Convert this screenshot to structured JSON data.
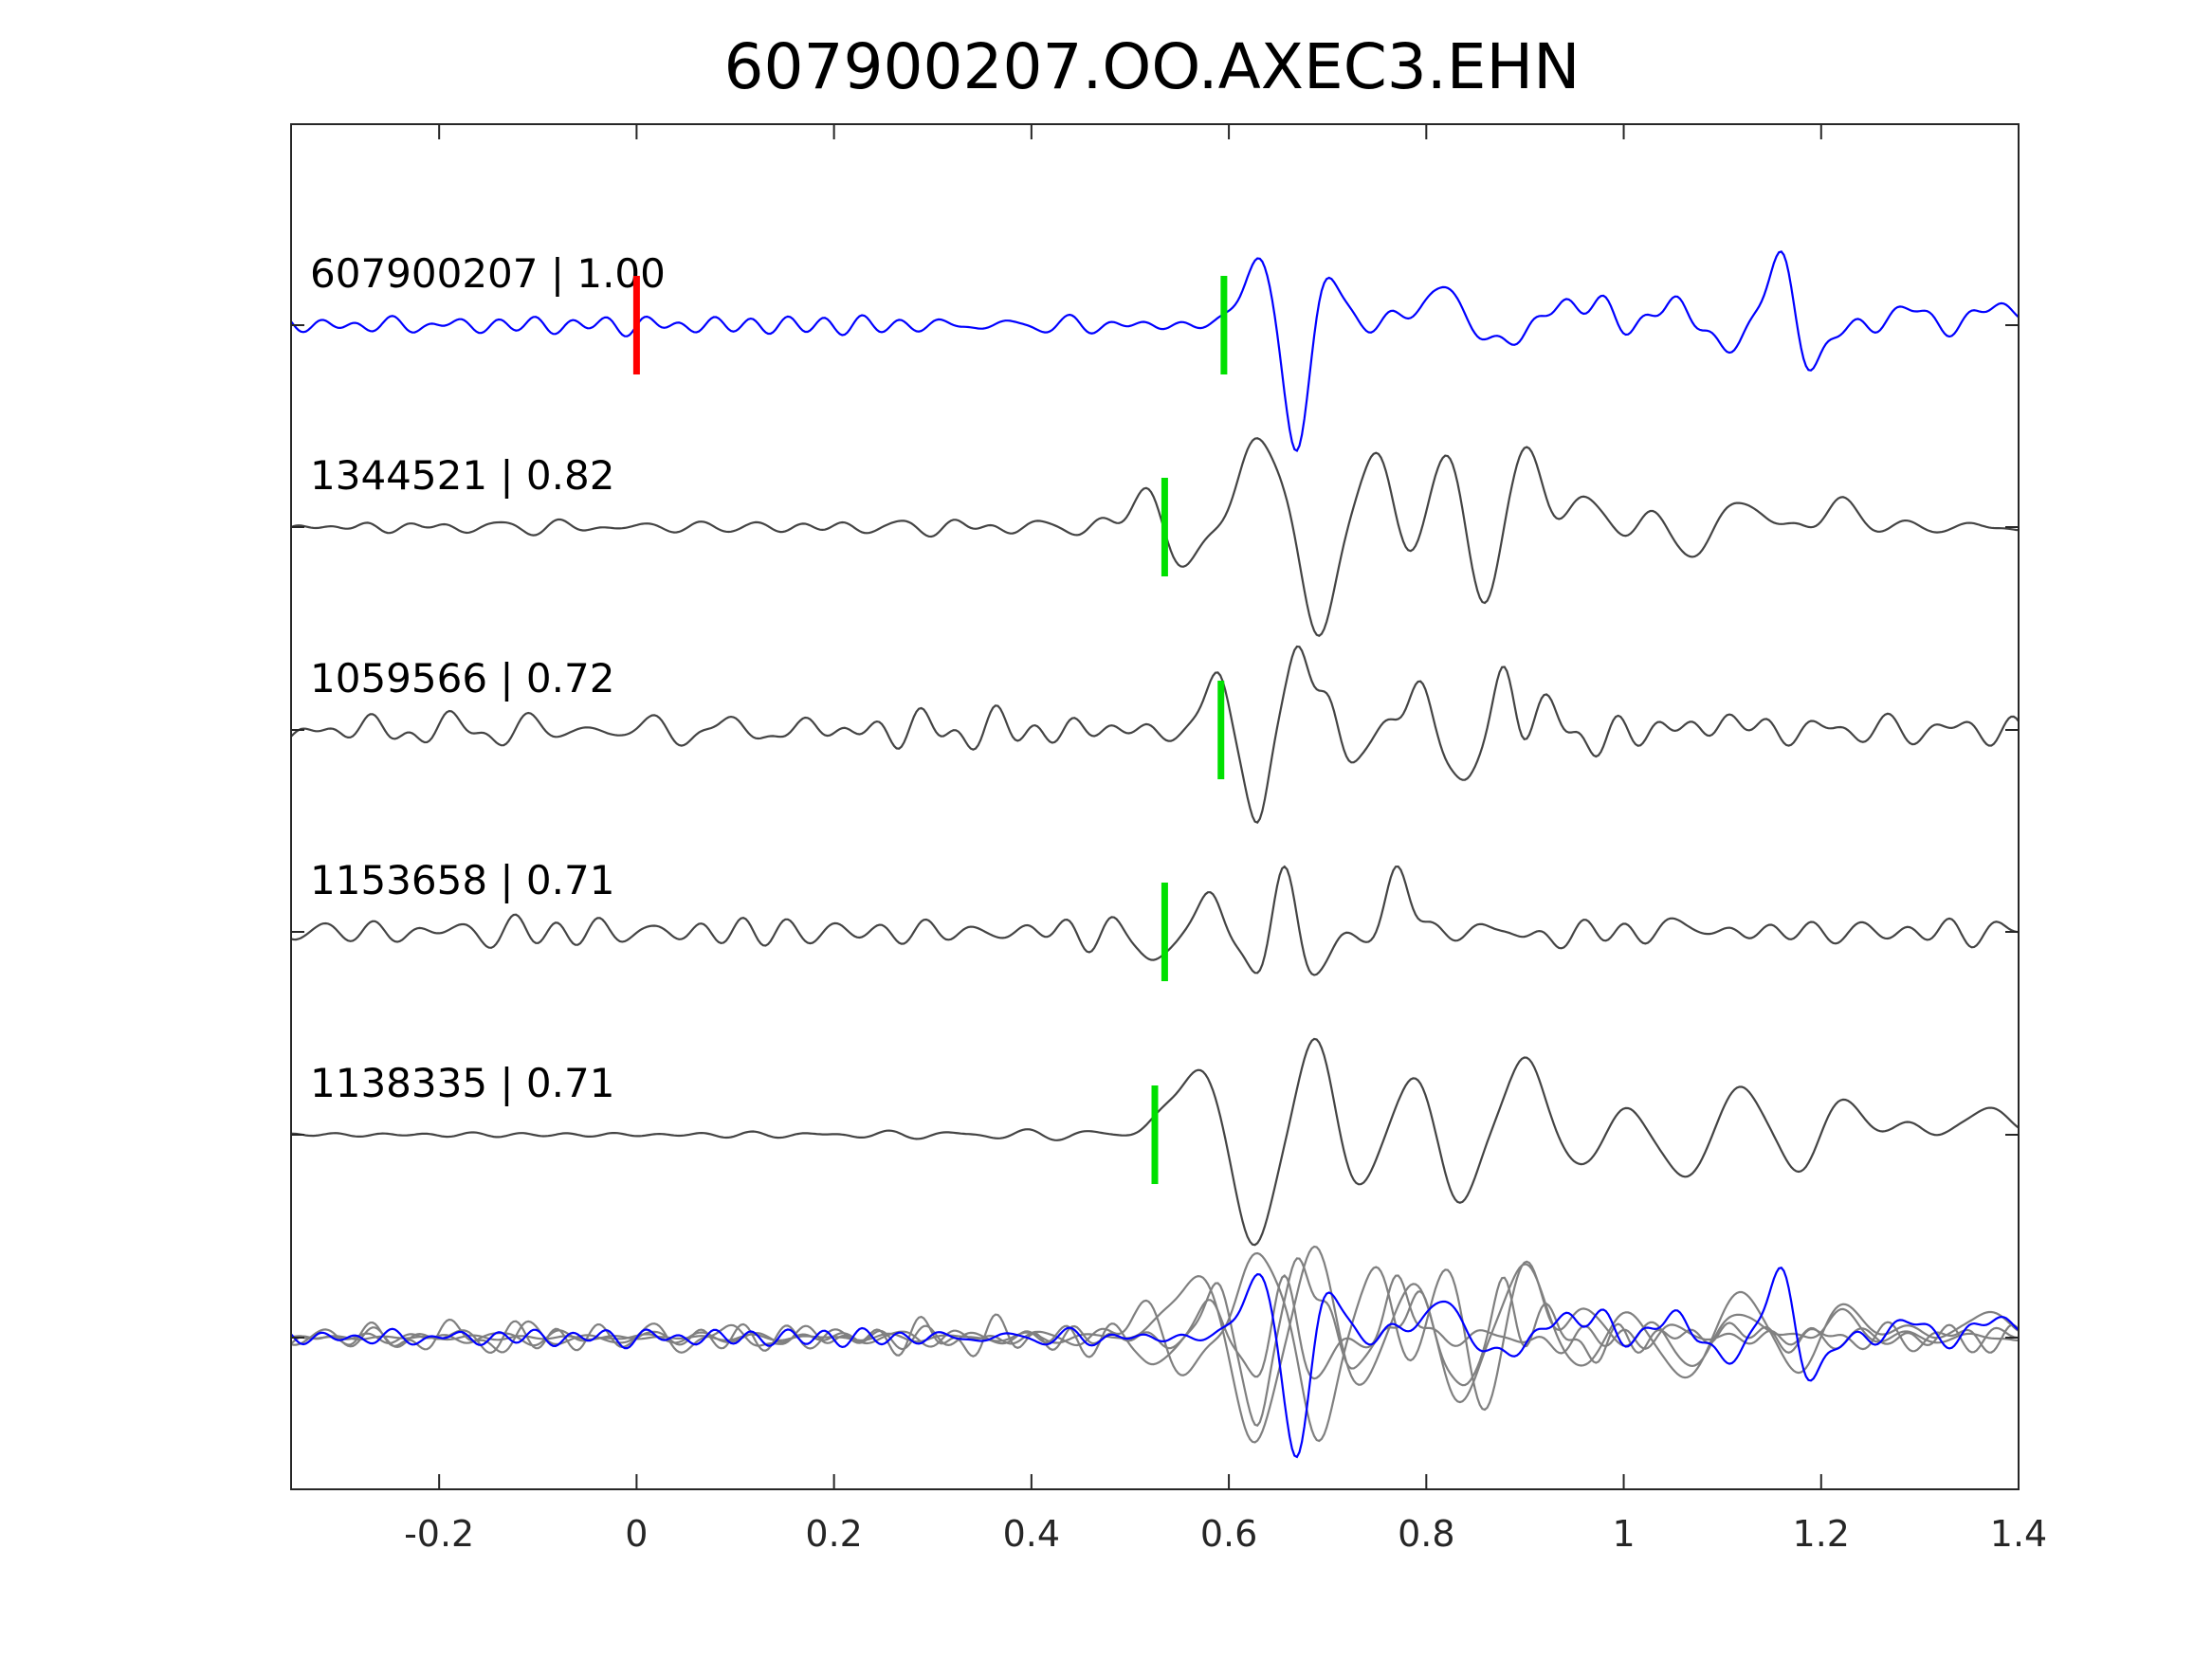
{
  "chart_data": {
    "type": "line",
    "title": "607900207.OO.AXEC3.EHN",
    "xlabel": "",
    "ylabel": "",
    "xlim": [
      -0.35,
      1.4
    ],
    "x_ticks": [
      -0.2,
      0,
      0.2,
      0.4,
      0.6,
      0.8,
      1,
      1.2,
      1.4
    ],
    "x_tick_labels": [
      "-0.2",
      "0",
      "0.2",
      "0.4",
      "0.6",
      "0.8",
      "1",
      "1.2",
      "1.4"
    ],
    "grid": false,
    "colors": {
      "template": "#0000ff",
      "match": "#444444",
      "overlay": "#808080",
      "red_pick": "#ff0000",
      "green_pick": "#00e000"
    },
    "traces": [
      {
        "id": "607900207",
        "cc": "1.00",
        "label": "607900207 | 1.00",
        "color": "#0000ff",
        "pick": 0.595,
        "red_pick": 0.0,
        "amplitude": 1.0,
        "onset": 0.58,
        "dom_freq": 14,
        "noise": 0.13,
        "seed": 7,
        "wavelet": [
          [
            0.6,
            0.08
          ],
          [
            0.63,
            0.95
          ],
          [
            0.668,
            -1.6
          ],
          [
            0.7,
            0.7
          ],
          [
            0.78,
            0.2
          ],
          [
            0.82,
            0.55
          ],
          [
            0.87,
            -0.3
          ],
          [
            0.94,
            0.25
          ],
          [
            0.97,
            0.3
          ],
          [
            1.05,
            0.35
          ],
          [
            1.1,
            -0.3
          ],
          [
            1.16,
            0.95
          ],
          [
            1.19,
            -0.65
          ],
          [
            1.29,
            0.25
          ],
          [
            1.38,
            0.35
          ]
        ]
      },
      {
        "id": "1344521",
        "cc": "0.82",
        "label": "1344521 | 0.82",
        "color": "#444444",
        "pick": 0.535,
        "amplitude": 1.0,
        "onset": 0.45,
        "dom_freq": 11,
        "noise": 0.1,
        "seed": 13,
        "wavelet": [
          [
            0.52,
            0.55
          ],
          [
            0.55,
            -0.6
          ],
          [
            0.625,
            0.9
          ],
          [
            0.65,
            0.5
          ],
          [
            0.69,
            -1.35
          ],
          [
            0.75,
            1.0
          ],
          [
            0.78,
            -0.45
          ],
          [
            0.82,
            0.9
          ],
          [
            0.86,
            -0.95
          ],
          [
            0.9,
            1.0
          ],
          [
            0.96,
            0.3
          ],
          [
            1.04,
            0.1
          ],
          [
            1.07,
            -0.35
          ],
          [
            1.12,
            0.35
          ],
          [
            1.22,
            0.3
          ]
        ]
      },
      {
        "id": "1059566",
        "cc": "0.72",
        "label": "1059566 | 0.72",
        "color": "#444444",
        "pick": 0.592,
        "amplitude": 1.0,
        "onset": 0.55,
        "dom_freq": 16,
        "noise": 0.18,
        "seed": 29,
        "wavelet": [
          [
            0.59,
            0.6
          ],
          [
            0.63,
            -1.1
          ],
          [
            0.67,
            1.0
          ],
          [
            0.7,
            0.5
          ],
          [
            0.72,
            -0.5
          ],
          [
            0.79,
            0.5
          ],
          [
            0.84,
            -0.75
          ],
          [
            0.88,
            0.65
          ],
          [
            0.93,
            0.2
          ],
          [
            0.97,
            -0.2
          ],
          [
            1.1,
            0.15
          ]
        ]
      },
      {
        "id": "1153658",
        "cc": "0.71",
        "label": "1153658 | 0.71",
        "color": "#444444",
        "pick": 0.535,
        "amplitude": 1.0,
        "onset": 0.5,
        "dom_freq": 16,
        "noise": 0.15,
        "seed": 41,
        "wavelet": [
          [
            0.52,
            -0.45
          ],
          [
            0.58,
            0.45
          ],
          [
            0.63,
            -0.75
          ],
          [
            0.655,
            1.1
          ],
          [
            0.68,
            -0.55
          ],
          [
            0.7,
            -0.3
          ],
          [
            0.77,
            0.75
          ],
          [
            0.8,
            0.15
          ],
          [
            0.84,
            0.0
          ],
          [
            0.93,
            -0.12
          ],
          [
            1.06,
            0.12
          ]
        ]
      },
      {
        "id": "1138335",
        "cc": "0.71",
        "label": "1138335 | 0.71",
        "color": "#444444",
        "pick": 0.525,
        "amplitude": 1.0,
        "onset": 0.47,
        "dom_freq": 10,
        "noise": 0.06,
        "seed": 53,
        "wavelet": [
          [
            0.53,
            0.15
          ],
          [
            0.57,
            0.72
          ],
          [
            0.625,
            -1.15
          ],
          [
            0.69,
            1.0
          ],
          [
            0.73,
            -0.6
          ],
          [
            0.79,
            0.68
          ],
          [
            0.83,
            -0.75
          ],
          [
            0.9,
            0.8
          ],
          [
            0.96,
            -0.35
          ],
          [
            1.0,
            0.3
          ],
          [
            1.06,
            -0.45
          ],
          [
            1.12,
            0.5
          ],
          [
            1.18,
            -0.4
          ],
          [
            1.22,
            0.4
          ],
          [
            1.29,
            0.1
          ],
          [
            1.37,
            0.3
          ]
        ]
      }
    ],
    "overlay": {
      "description_hidden": true
    }
  }
}
